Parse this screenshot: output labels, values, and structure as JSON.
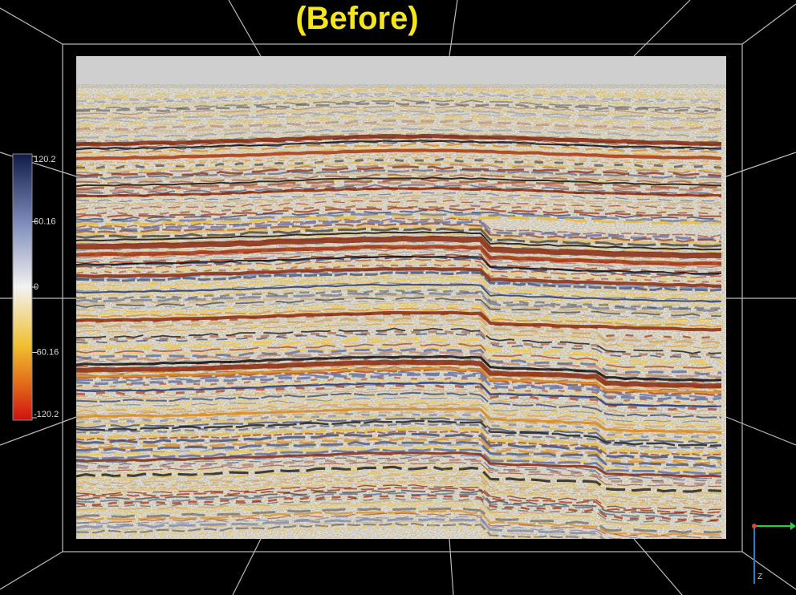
{
  "title": "(Before)",
  "colorbar": {
    "labels": [
      "120.2",
      "60.16",
      "0",
      "-60.16",
      "-120.2"
    ]
  },
  "axes_gizmo": {
    "labels": [
      "Z"
    ]
  }
}
